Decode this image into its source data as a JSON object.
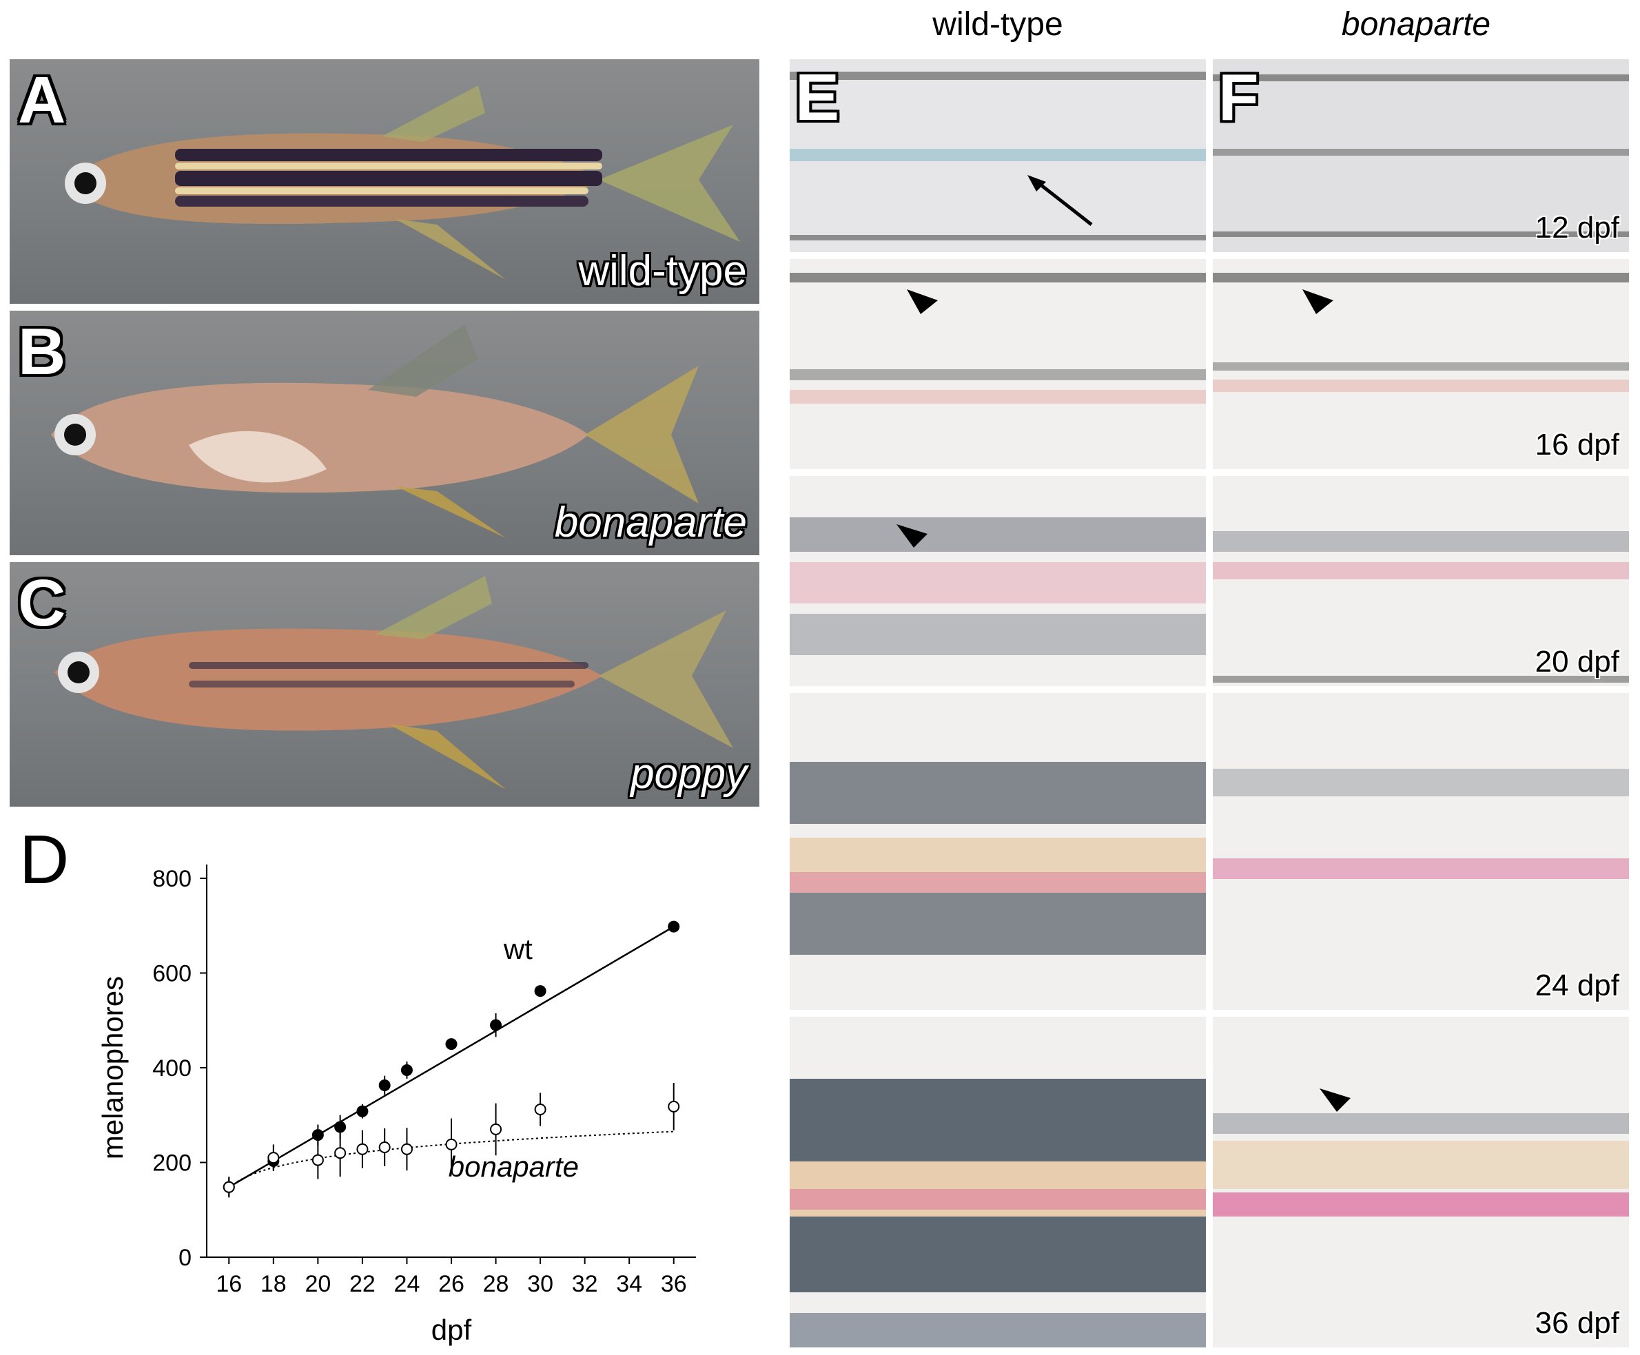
{
  "columns": {
    "wildtype": "wild-type",
    "bonaparte": "bonaparte"
  },
  "panels": {
    "A": {
      "letter": "A",
      "label": "wild-type"
    },
    "B": {
      "letter": "B",
      "label": "bonaparte"
    },
    "C": {
      "letter": "C",
      "label": "poppy"
    },
    "D": {
      "letter": "D"
    },
    "E": {
      "letter": "E"
    },
    "F": {
      "letter": "F"
    }
  },
  "stages": [
    "12 dpf",
    "16 dpf",
    "20 dpf",
    "24 dpf",
    "36 dpf"
  ],
  "chart_data": {
    "type": "scatter",
    "xlabel": "dpf",
    "ylabel": "melanophores",
    "xlim": [
      15,
      37
    ],
    "ylim": [
      0,
      800
    ],
    "xticks": [
      16,
      18,
      20,
      22,
      24,
      26,
      28,
      30,
      32,
      34,
      36
    ],
    "yticks": [
      0,
      200,
      400,
      600,
      800
    ],
    "grid": false,
    "series": [
      {
        "name": "wt",
        "marker": "filled",
        "line": "solid",
        "x": [
          16,
          18,
          20,
          21,
          22,
          23,
          24,
          26,
          28,
          30,
          36
        ],
        "y": [
          148,
          203,
          258,
          275,
          308,
          363,
          395,
          450,
          490,
          562,
          698
        ],
        "err": [
          20,
          18,
          22,
          25,
          15,
          20,
          18,
          10,
          25,
          10,
          8
        ]
      },
      {
        "name": "bonaparte",
        "marker": "open",
        "line": "dotted",
        "x": [
          16,
          18,
          20,
          21,
          22,
          23,
          24,
          26,
          28,
          30,
          36
        ],
        "y": [
          148,
          210,
          205,
          220,
          228,
          232,
          228,
          238,
          270,
          312,
          318
        ],
        "err": [
          22,
          28,
          40,
          50,
          40,
          40,
          45,
          55,
          55,
          35,
          50
        ]
      }
    ]
  }
}
